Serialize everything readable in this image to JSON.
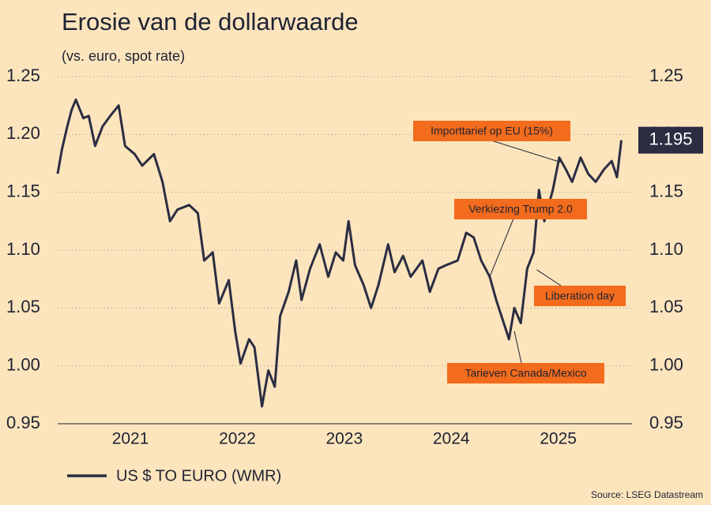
{
  "chart_data": {
    "type": "line",
    "title": "Erosie van de dollarwaarde",
    "subtitle": "(vs. euro, spot rate)",
    "source": "Source: LSEG Datastream",
    "xlim": [
      2020.32,
      2025.69
    ],
    "xticks": [
      2021,
      2022,
      2023,
      2024,
      2025
    ],
    "ylim": [
      0.95,
      1.25
    ],
    "yticks": [
      0.95,
      {
        "value": 1.0,
        "label": "1.00"
      },
      1.05,
      {
        "value": 1.1,
        "label": "1.10"
      },
      1.15,
      {
        "value": 1.2,
        "label": "1.20"
      },
      1.25
    ],
    "y2lim": [
      0.95,
      1.25
    ],
    "y2ticks": [
      0.95,
      {
        "value": 1.0,
        "label": "1.00"
      },
      1.05,
      {
        "value": 1.1,
        "label": "1.10"
      },
      1.15,
      {
        "value": 1.2,
        "label": "1.20"
      },
      1.25
    ],
    "grid": true,
    "legend": "bottom-left",
    "series": [
      {
        "name": "US $ TO EURO (WMR)",
        "color": "#2b2d42",
        "x": [
          2020.32,
          2020.36,
          2020.41,
          2020.45,
          2020.49,
          2020.56,
          2020.61,
          2020.67,
          2020.74,
          2020.82,
          2020.89,
          2020.95,
          2021.04,
          2021.11,
          2021.22,
          2021.3,
          2021.37,
          2021.44,
          2021.55,
          2021.63,
          2021.69,
          2021.77,
          2021.83,
          2021.92,
          2021.98,
          2022.03,
          2022.11,
          2022.16,
          2022.23,
          2022.29,
          2022.35,
          2022.4,
          2022.48,
          2022.55,
          2022.6,
          2022.68,
          2022.77,
          2022.85,
          2022.92,
          2022.99,
          2023.04,
          2023.1,
          2023.18,
          2023.25,
          2023.32,
          2023.41,
          2023.47,
          2023.55,
          2023.62,
          2023.73,
          2023.8,
          2023.88,
          2023.95,
          2024.06,
          2024.14,
          2024.21,
          2024.28,
          2024.36,
          2024.42,
          2024.47,
          2024.54,
          2024.59,
          2024.65,
          2024.71,
          2024.77,
          2024.82,
          2024.87,
          2024.95,
          2025.01,
          2025.07,
          2025.13,
          2025.21,
          2025.28,
          2025.35,
          2025.43,
          2025.5,
          2025.55,
          2025.59
        ],
        "values": [
          1.166,
          1.187,
          1.207,
          1.221,
          1.23,
          1.214,
          1.216,
          1.19,
          1.207,
          1.217,
          1.225,
          1.19,
          1.183,
          1.173,
          1.183,
          1.159,
          1.125,
          1.135,
          1.139,
          1.132,
          1.091,
          1.098,
          1.054,
          1.074,
          1.03,
          1.002,
          1.023,
          1.016,
          0.965,
          0.996,
          0.982,
          1.043,
          1.064,
          1.091,
          1.057,
          1.084,
          1.105,
          1.077,
          1.098,
          1.091,
          1.125,
          1.087,
          1.07,
          1.05,
          1.07,
          1.105,
          1.081,
          1.095,
          1.077,
          1.091,
          1.064,
          1.084,
          1.087,
          1.091,
          1.115,
          1.111,
          1.091,
          1.077,
          1.057,
          1.043,
          1.023,
          1.05,
          1.037,
          1.084,
          1.098,
          1.152,
          1.125,
          1.152,
          1.18,
          1.17,
          1.159,
          1.18,
          1.166,
          1.159,
          1.17,
          1.177,
          1.163,
          1.195
        ]
      }
    ],
    "annotations": [
      {
        "text": "Importtarief op EU (15%)",
        "x": 2025.02,
        "y": 1.176
      },
      {
        "text": "Verkiezing Trump 2.0",
        "x": 2024.36,
        "y": 1.077
      },
      {
        "text": "Liberation day",
        "x": 2024.8,
        "y": 1.083
      },
      {
        "text": "Tarieven Canada/Mexico",
        "x": 2024.59,
        "y": 1.03
      }
    ]
  }
}
